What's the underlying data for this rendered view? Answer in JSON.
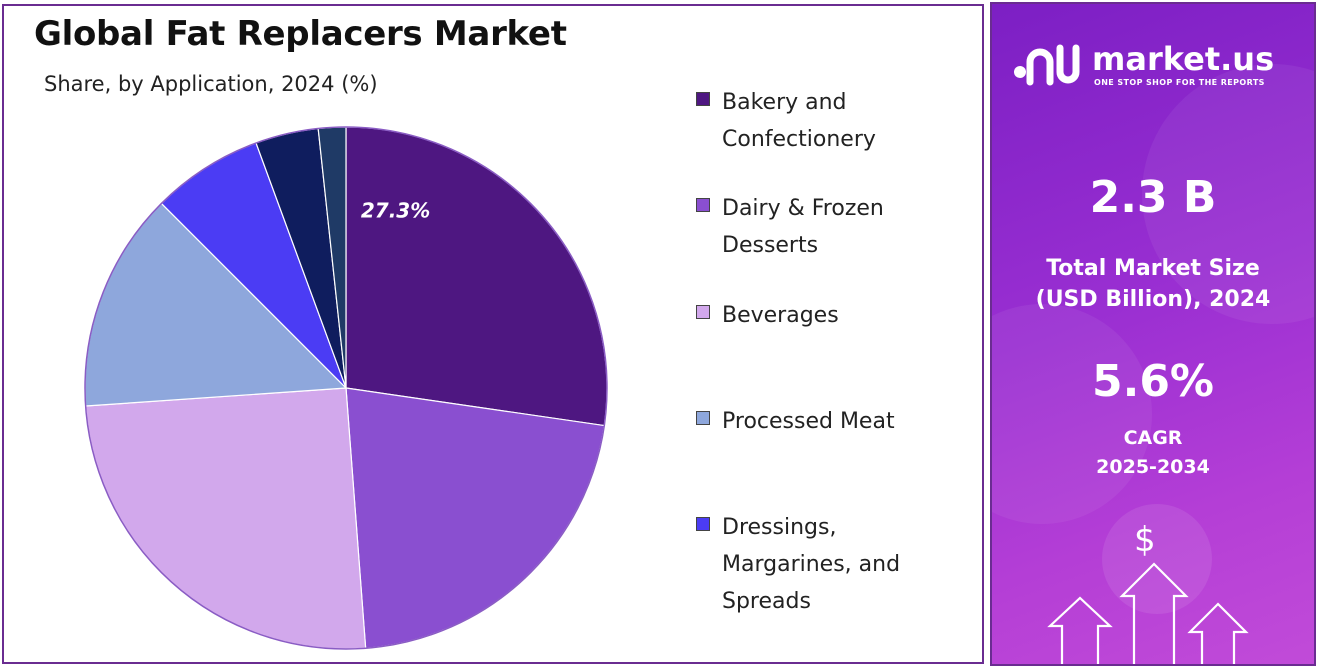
{
  "header": {
    "title": "Global Fat Replacers Market",
    "subtitle": "Share, by Application, 2024 (%)"
  },
  "chart_data": {
    "type": "pie",
    "title": "Global Fat Replacers Market",
    "subtitle": "Share, by Application, 2024 (%)",
    "unit": "%",
    "legend_position": "right",
    "slices": [
      {
        "label": "Bakery and Confectionery",
        "value": 27.3,
        "color": "#4e1781",
        "data_label": "27.3%"
      },
      {
        "label": "Dairy & Frozen Desserts",
        "value": 21.5,
        "color": "#8a4fd0"
      },
      {
        "label": "Beverages",
        "value": 25.1,
        "color": "#d2a8ec"
      },
      {
        "label": "Processed Meat",
        "value": 13.6,
        "color": "#8ea7dc"
      },
      {
        "label": "Dressings, Margarines, and Spreads",
        "value": 6.9,
        "color": "#4b3cf4"
      },
      {
        "label": "",
        "value": 3.9,
        "color": "#0f1d5e"
      },
      {
        "label": "",
        "value": 1.7,
        "color": "#1f3a66"
      }
    ]
  },
  "legend": {
    "items": [
      {
        "line1": "Bakery and",
        "line2": "Confectionery",
        "line3": "",
        "color": "#4e1781"
      },
      {
        "line1": "Dairy & Frozen",
        "line2": "Desserts",
        "line3": "",
        "color": "#8a4fd0"
      },
      {
        "line1": "Beverages",
        "line2": "",
        "line3": "",
        "color": "#d2a8ec"
      },
      {
        "line1": "Processed Meat",
        "line2": "",
        "line3": "",
        "color": "#8ea7dc"
      },
      {
        "line1": "Dressings,",
        "line2": "Margarines, and",
        "line3": "Spreads",
        "color": "#4b3cf4"
      }
    ]
  },
  "sidebar": {
    "brand_name": "market.us",
    "brand_tagline": "ONE STOP SHOP FOR THE REPORTS",
    "market_size_value": "2.3 B",
    "market_size_label_line1": "Total Market Size",
    "market_size_label_line2": "(USD Billion), 2024",
    "cagr_value": "5.6%",
    "cagr_label_line1": "CAGR",
    "cagr_label_line2": "2025-2034",
    "dollar_symbol": "$",
    "icons": [
      "market-us-logo-icon",
      "upward-arrows-icon"
    ]
  }
}
